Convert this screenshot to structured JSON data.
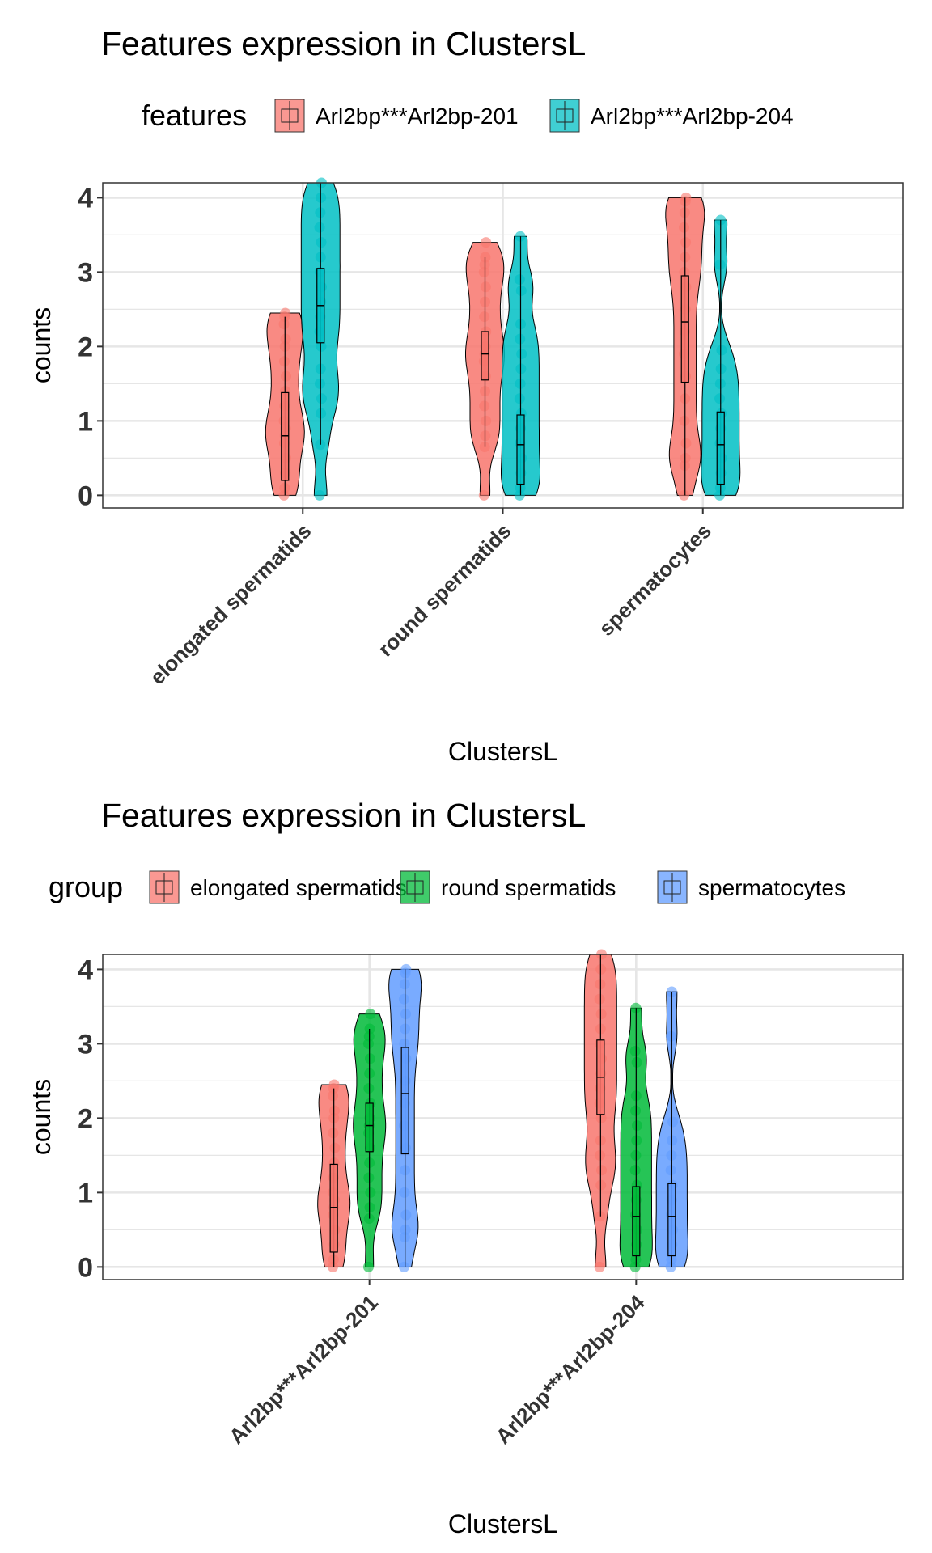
{
  "chart_data": [
    {
      "type": "violin",
      "title": "Features expression in ClustersL",
      "xlabel": "ClustersL",
      "ylabel": "counts",
      "ylim": [
        0,
        4.2
      ],
      "yticks": [
        0,
        1,
        2,
        3,
        4
      ],
      "grid": true,
      "legend": {
        "title": "features",
        "position": "top",
        "entries": [
          {
            "name": "Arl2bp***Arl2bp-201",
            "color": "#F8766D"
          },
          {
            "name": "Arl2bp***Arl2bp-204",
            "color": "#00BFC4"
          }
        ]
      },
      "categories": [
        "elongated spermatids",
        "round spermatids",
        "spermatocytes"
      ],
      "series": [
        {
          "name": "Arl2bp***Arl2bp-201",
          "color": "#F8766D",
          "values": [
            {
              "median": 0.8,
              "q1": 0.2,
              "q3": 1.38,
              "whisker_low": 0,
              "whisker_high": 2.4,
              "points": [
                0,
                0.1,
                0.3,
                0.5,
                0.7,
                0.8,
                0.9,
                1.0,
                1.2,
                1.4,
                1.6,
                1.8,
                2.0,
                2.1,
                2.3,
                2.4,
                2.45
              ]
            },
            {
              "median": 1.9,
              "q1": 1.55,
              "q3": 2.2,
              "whisker_low": 0.65,
              "whisker_high": 3.2,
              "points": [
                0,
                0.65,
                0.8,
                1.0,
                1.2,
                1.4,
                1.6,
                1.8,
                1.9,
                2.0,
                2.2,
                2.4,
                2.6,
                2.8,
                3.0,
                3.1,
                3.2,
                3.4
              ]
            },
            {
              "median": 2.33,
              "q1": 1.52,
              "q3": 2.95,
              "whisker_low": 0,
              "whisker_high": 4.0,
              "points": [
                0,
                0.4,
                0.5,
                0.7,
                1.0,
                1.3,
                1.6,
                1.9,
                2.2,
                2.5,
                2.8,
                3.0,
                3.2,
                3.4,
                3.6,
                3.8,
                3.95,
                4.0
              ]
            }
          ]
        },
        {
          "name": "Arl2bp***Arl2bp-204",
          "color": "#00BFC4",
          "values": [
            {
              "median": 2.55,
              "q1": 2.05,
              "q3": 3.05,
              "whisker_low": 0.68,
              "whisker_high": 4.2,
              "points": [
                0,
                0.68,
                1.1,
                1.3,
                1.5,
                1.7,
                2.0,
                2.2,
                2.4,
                2.6,
                2.8,
                3.0,
                3.2,
                3.4,
                3.6,
                3.8,
                4.0,
                4.2
              ]
            },
            {
              "median": 0.68,
              "q1": 0.15,
              "q3": 1.08,
              "whisker_low": 0,
              "whisker_high": 3.48,
              "points": [
                0,
                0.1,
                0.3,
                0.5,
                0.7,
                0.9,
                1.1,
                1.3,
                1.5,
                1.7,
                1.9,
                2.1,
                2.3,
                2.75,
                2.9,
                3.48
              ]
            },
            {
              "median": 0.68,
              "q1": 0.15,
              "q3": 1.12,
              "whisker_low": 0,
              "whisker_high": 3.7,
              "points": [
                0,
                0.1,
                0.3,
                0.5,
                0.7,
                0.9,
                1.1,
                1.3,
                1.5,
                1.7,
                1.95,
                3.1,
                3.7
              ]
            }
          ]
        }
      ]
    },
    {
      "type": "violin",
      "title": "Features expression in ClustersL",
      "xlabel": "ClustersL",
      "ylabel": "counts",
      "ylim": [
        0,
        4.2
      ],
      "yticks": [
        0,
        1,
        2,
        3,
        4
      ],
      "grid": true,
      "legend": {
        "title": "group",
        "position": "top",
        "entries": [
          {
            "name": "elongated spermatids",
            "color": "#F8766D"
          },
          {
            "name": "round spermatids",
            "color": "#00BA38"
          },
          {
            "name": "spermatocytes",
            "color": "#619CFF"
          }
        ]
      },
      "categories": [
        "Arl2bp***Arl2bp-201",
        "Arl2bp***Arl2bp-204"
      ],
      "series": [
        {
          "name": "elongated spermatids",
          "color": "#F8766D",
          "values": [
            {
              "median": 0.8,
              "q1": 0.2,
              "q3": 1.38,
              "whisker_low": 0,
              "whisker_high": 2.4,
              "points": [
                0,
                0.1,
                0.3,
                0.5,
                0.7,
                0.8,
                0.9,
                1.0,
                1.2,
                1.4,
                1.6,
                1.8,
                2.0,
                2.1,
                2.3,
                2.4,
                2.45
              ]
            },
            {
              "median": 2.55,
              "q1": 2.05,
              "q3": 3.05,
              "whisker_low": 0.68,
              "whisker_high": 4.2,
              "points": [
                0,
                0.68,
                1.1,
                1.3,
                1.5,
                1.7,
                2.0,
                2.2,
                2.4,
                2.6,
                2.8,
                3.0,
                3.2,
                3.4,
                3.6,
                3.8,
                4.0,
                4.2
              ]
            }
          ]
        },
        {
          "name": "round spermatids",
          "color": "#00BA38",
          "values": [
            {
              "median": 1.9,
              "q1": 1.55,
              "q3": 2.2,
              "whisker_low": 0.65,
              "whisker_high": 3.2,
              "points": [
                0,
                0.65,
                0.8,
                1.0,
                1.2,
                1.4,
                1.6,
                1.8,
                1.9,
                2.0,
                2.2,
                2.4,
                2.6,
                2.8,
                3.0,
                3.1,
                3.2,
                3.4
              ]
            },
            {
              "median": 0.68,
              "q1": 0.15,
              "q3": 1.08,
              "whisker_low": 0,
              "whisker_high": 3.48,
              "points": [
                0,
                0.1,
                0.3,
                0.5,
                0.7,
                0.9,
                1.1,
                1.3,
                1.5,
                1.7,
                1.9,
                2.1,
                2.3,
                2.75,
                2.9,
                3.48
              ]
            }
          ]
        },
        {
          "name": "spermatocytes",
          "color": "#619CFF",
          "values": [
            {
              "median": 2.33,
              "q1": 1.52,
              "q3": 2.95,
              "whisker_low": 0,
              "whisker_high": 4.0,
              "points": [
                0,
                0.4,
                0.5,
                0.7,
                1.0,
                1.3,
                1.6,
                1.9,
                2.2,
                2.5,
                2.8,
                3.0,
                3.2,
                3.4,
                3.6,
                3.8,
                3.95,
                4.0
              ]
            },
            {
              "median": 0.68,
              "q1": 0.15,
              "q3": 1.12,
              "whisker_low": 0,
              "whisker_high": 3.7,
              "points": [
                0,
                0.1,
                0.3,
                0.5,
                0.7,
                0.9,
                1.1,
                1.3,
                1.5,
                1.7,
                1.95,
                3.1,
                3.7
              ]
            }
          ]
        }
      ]
    }
  ]
}
